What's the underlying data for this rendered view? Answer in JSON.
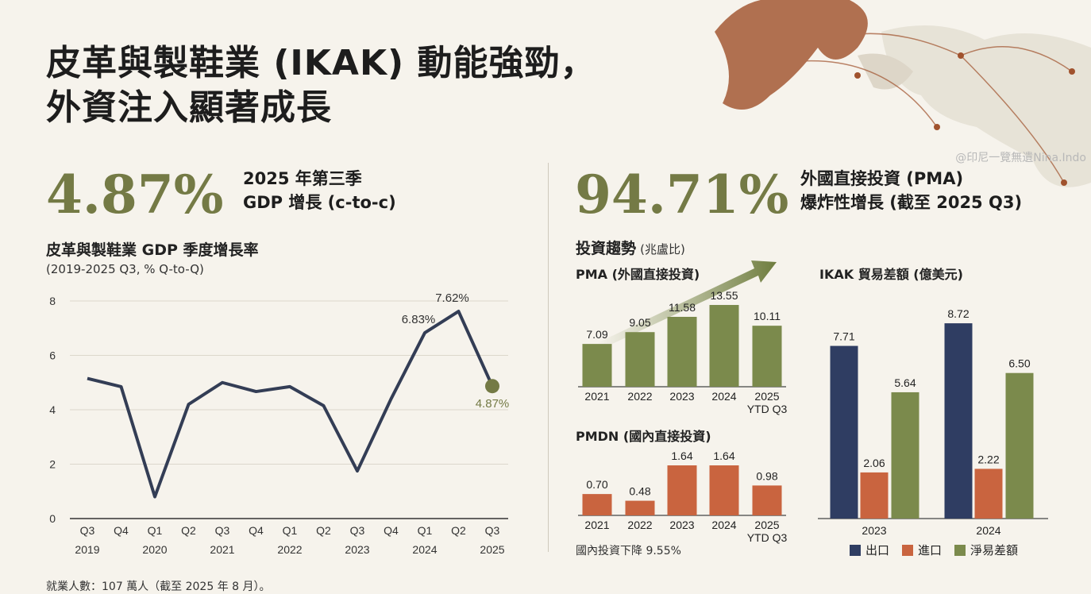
{
  "title_line1": "皮革與製鞋業 (IKAK) 動能強勁，",
  "title_line2": "外資注入顯著成長",
  "watermark": "@印尼一覽無遺Nina.Indo",
  "stat_left": {
    "value": "4.87%",
    "desc1": "2025 年第三季",
    "desc2": "GDP 增長 (c-to-c)"
  },
  "stat_right": {
    "value": "94.71%",
    "desc1": "外國直接投資 (PMA)",
    "desc2": "爆炸性增長 (截至 2025 Q3)"
  },
  "invest_heading": "投資趨勢",
  "invest_unit": "(兆盧比)",
  "pmdn_note": "國內投資下降 9.55%",
  "footer_note": "就業人數：107 萬人（截至 2025 年 8 月）。",
  "colors": {
    "olive": "#747a45",
    "bar_green": "#7b8a4c",
    "navy": "#2f3d62",
    "line": "#333d55",
    "orange": "#c9643f"
  },
  "chart_data": [
    {
      "type": "line",
      "title": "皮革與製鞋業 GDP 季度增長率",
      "subtitle": "(2019-2025 Q3, % Q-to-Q)",
      "categories": [
        [
          "Q3",
          "2019"
        ],
        [
          "Q4",
          ""
        ],
        [
          "Q1",
          "2020"
        ],
        [
          "Q2",
          ""
        ],
        [
          "Q3",
          "2021"
        ],
        [
          "Q4",
          ""
        ],
        [
          "Q1",
          "2022"
        ],
        [
          "Q2",
          ""
        ],
        [
          "Q3",
          "2023"
        ],
        [
          "Q4",
          ""
        ],
        [
          "Q1",
          "2024"
        ],
        [
          "Q2",
          ""
        ],
        [
          "Q3",
          "2025"
        ]
      ],
      "values": [
        5.15,
        4.85,
        0.8,
        4.2,
        5.0,
        4.67,
        4.85,
        4.15,
        1.75,
        4.4,
        6.83,
        7.62,
        4.87
      ],
      "annotations": [
        {
          "index": 10,
          "label": "6.83%"
        },
        {
          "index": 11,
          "label": "7.62%"
        },
        {
          "index": 12,
          "label": "4.87%"
        }
      ],
      "ylim": [
        0,
        8
      ],
      "yticks": [
        "0",
        "2",
        "4",
        "6",
        "8"
      ],
      "grid": true
    },
    {
      "type": "bar",
      "title": "PMA (外國直接投資)",
      "categories": [
        [
          "2021"
        ],
        [
          "2022"
        ],
        [
          "2023"
        ],
        [
          "2024"
        ],
        [
          "2025",
          "YTD Q3"
        ]
      ],
      "values": [
        7.09,
        9.05,
        11.58,
        13.55,
        10.11
      ],
      "labels": [
        "7.09",
        "9.05",
        "11.58",
        "13.55",
        "10.11"
      ]
    },
    {
      "type": "bar",
      "title": "PMDN (國內直接投資)",
      "categories": [
        [
          "2021"
        ],
        [
          "2022"
        ],
        [
          "2023"
        ],
        [
          "2024"
        ],
        [
          "2025",
          "YTD Q3"
        ]
      ],
      "values": [
        0.7,
        0.48,
        1.64,
        1.64,
        0.98
      ],
      "labels": [
        "0.70",
        "0.48",
        "1.64",
        "1.64",
        "0.98"
      ]
    },
    {
      "type": "bar",
      "title": "IKAK 貿易差額 (億美元)",
      "categories": [
        "2023",
        "2024"
      ],
      "series": [
        {
          "name": "出口",
          "values": [
            7.71,
            8.72
          ],
          "labels": [
            "7.71",
            "8.72"
          ]
        },
        {
          "name": "進口",
          "values": [
            2.06,
            2.22
          ],
          "labels": [
            "2.06",
            "2.22"
          ]
        },
        {
          "name": "淨易差額",
          "values": [
            5.64,
            6.5
          ],
          "labels": [
            "5.64",
            "6.50"
          ]
        }
      ],
      "legend": "bottom"
    }
  ]
}
